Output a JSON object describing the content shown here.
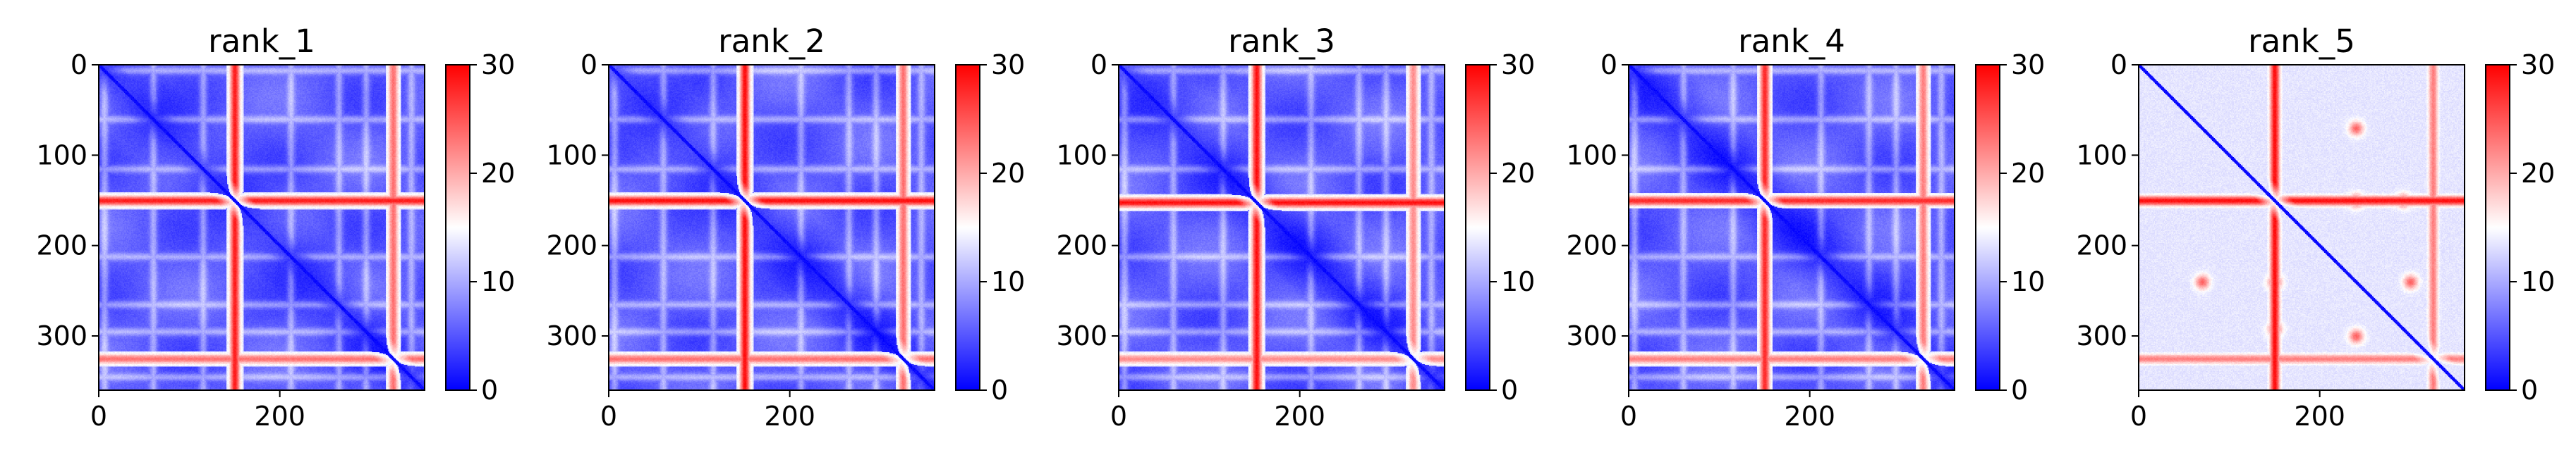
{
  "figure": {
    "panel_count": 5
  },
  "colorscale": {
    "name": "bwr",
    "stops": [
      "#0000ff",
      "#ffffff",
      "#ff0000"
    ]
  },
  "chart_data": [
    {
      "type": "heatmap",
      "title": "rank_1",
      "xlabel": "",
      "ylabel": "",
      "xlim": [
        0,
        360
      ],
      "ylim": [
        360,
        0
      ],
      "xticks": [
        0,
        200
      ],
      "yticks": [
        0,
        100,
        200,
        300
      ],
      "colorbar": {
        "range": [
          0,
          30
        ],
        "ticks": [
          0,
          10,
          20,
          30
        ]
      },
      "matrix_size": 360,
      "features": {
        "hot_bands": [
          {
            "pos": 150,
            "strength": 0.95
          },
          {
            "pos": 325,
            "strength": 0.65
          }
        ],
        "warm_lines": [
          6,
          60,
          115,
          212,
          265,
          295,
          345
        ],
        "diagonal": "low",
        "hot_spots": [
          {
            "row": 245,
            "cols": []
          }
        ]
      }
    },
    {
      "type": "heatmap",
      "title": "rank_2",
      "xlabel": "",
      "ylabel": "",
      "xlim": [
        0,
        360
      ],
      "ylim": [
        360,
        0
      ],
      "xticks": [
        0,
        200
      ],
      "yticks": [
        0,
        100,
        200,
        300
      ],
      "colorbar": {
        "range": [
          0,
          30
        ],
        "ticks": [
          0,
          10,
          20,
          30
        ]
      },
      "matrix_size": 360,
      "features": {
        "hot_bands": [
          {
            "pos": 150,
            "strength": 1.0
          },
          {
            "pos": 325,
            "strength": 0.65
          }
        ],
        "warm_lines": [
          6,
          60,
          115,
          212,
          265,
          295,
          345
        ],
        "diagonal": "low",
        "hot_spots": []
      }
    },
    {
      "type": "heatmap",
      "title": "rank_3",
      "xlabel": "",
      "ylabel": "",
      "xlim": [
        0,
        360
      ],
      "ylim": [
        360,
        0
      ],
      "xticks": [
        0,
        200
      ],
      "yticks": [
        0,
        100,
        200,
        300
      ],
      "colorbar": {
        "range": [
          0,
          30
        ],
        "ticks": [
          0,
          10,
          20,
          30
        ]
      },
      "matrix_size": 360,
      "features": {
        "hot_bands": [
          {
            "pos": 152,
            "strength": 1.0
          },
          {
            "pos": 325,
            "strength": 0.55
          }
        ],
        "warm_lines": [
          6,
          60,
          115,
          212,
          265,
          295,
          345
        ],
        "diagonal": "low",
        "hot_spots": []
      }
    },
    {
      "type": "heatmap",
      "title": "rank_4",
      "xlabel": "",
      "ylabel": "",
      "xlim": [
        0,
        360
      ],
      "ylim": [
        360,
        0
      ],
      "xticks": [
        0,
        200
      ],
      "yticks": [
        0,
        100,
        200,
        300
      ],
      "colorbar": {
        "range": [
          0,
          30
        ],
        "ticks": [
          0,
          10,
          20,
          30
        ]
      },
      "matrix_size": 360,
      "features": {
        "hot_bands": [
          {
            "pos": 150,
            "strength": 0.9
          },
          {
            "pos": 325,
            "strength": 0.6
          }
        ],
        "warm_lines": [
          6,
          60,
          115,
          212,
          265,
          295,
          345
        ],
        "diagonal": "low",
        "hot_spots": []
      }
    },
    {
      "type": "heatmap",
      "title": "rank_5",
      "xlabel": "",
      "ylabel": "",
      "xlim": [
        0,
        360
      ],
      "ylim": [
        360,
        0
      ],
      "xticks": [
        0,
        200
      ],
      "yticks": [
        0,
        100,
        200,
        300
      ],
      "colorbar": {
        "range": [
          0,
          30
        ],
        "ticks": [
          0,
          10,
          20,
          30
        ]
      },
      "matrix_size": 360,
      "features": {
        "hot_bands": [
          {
            "pos": 150,
            "strength": 1.0
          },
          {
            "pos": 325,
            "strength": 0.6
          }
        ],
        "warm_lines": [
          6,
          60,
          115,
          212,
          245,
          265,
          295,
          345
        ],
        "diagonal": "low",
        "hot_spots": [
          {
            "row": 240,
            "cols": [
              70,
              150,
              300
            ]
          },
          {
            "row": 292,
            "cols": [
              150
            ]
          }
        ]
      }
    }
  ]
}
